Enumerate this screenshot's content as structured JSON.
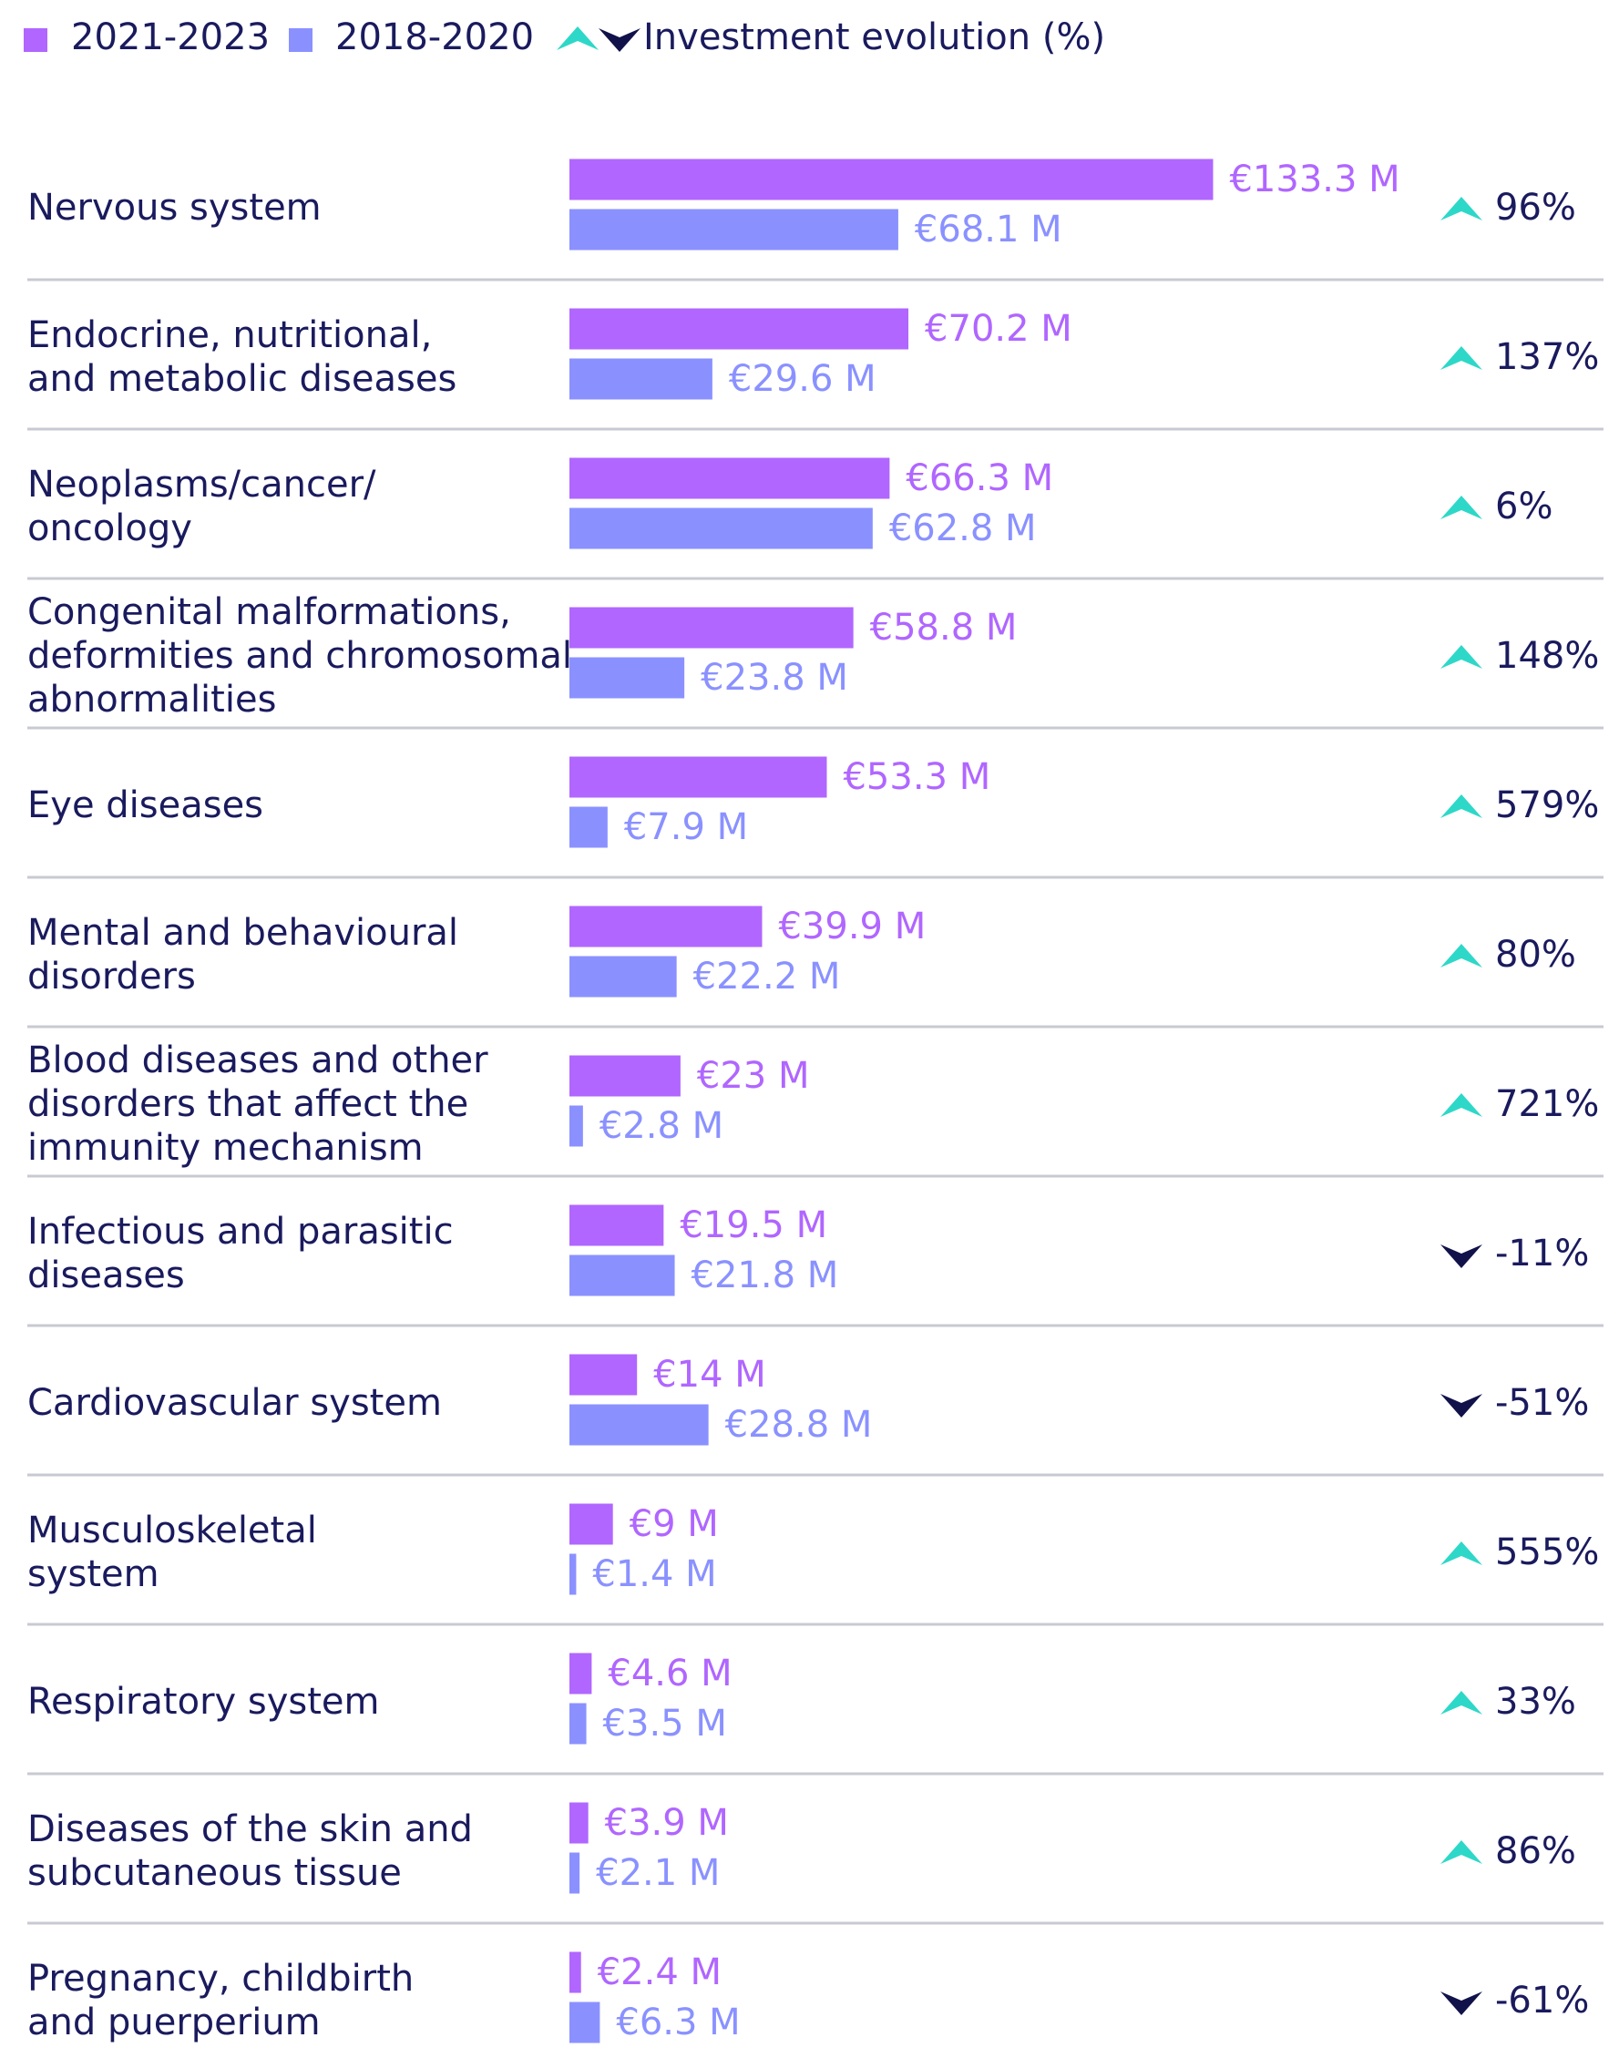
{
  "chart_data": {
    "type": "grouped-hbar",
    "legend_evolution": "Investment evolution (%)",
    "categories": [
      [
        "Nervous system"
      ],
      [
        "Endocrine, nutritional,",
        "and metabolic diseases"
      ],
      [
        "Neoplasms/cancer/",
        "oncology"
      ],
      [
        "Congenital malformations,",
        "deformities and chromosomal",
        "abnormalities"
      ],
      [
        "Eye diseases"
      ],
      [
        "Mental and behavioural",
        "disorders"
      ],
      [
        "Blood diseases and other",
        "disorders that affect the",
        "immunity mechanism"
      ],
      [
        "Infectious and parasitic",
        "diseases"
      ],
      [
        "Cardiovascular system"
      ],
      [
        "Musculoskeletal",
        "system"
      ],
      [
        "Respiratory system"
      ],
      [
        "Diseases of the skin and",
        "subcutaneous tissue"
      ],
      [
        "Pregnancy, childbirth",
        "and puerperium"
      ]
    ],
    "series": [
      {
        "name": "2021-2023",
        "color": "#b066ff",
        "values": [
          133.3,
          70.2,
          66.3,
          58.8,
          53.3,
          39.9,
          23,
          19.5,
          14,
          9,
          4.6,
          3.9,
          2.4
        ],
        "value_labels": [
          "€133.3 M",
          "€70.2 M",
          "€66.3 M",
          "€58.8 M",
          "€53.3 M",
          "€39.9 M",
          "€23 M",
          "€19.5 M",
          "€14 M",
          "€9 M",
          "€4.6 M",
          "€3.9 M",
          "€2.4 M"
        ]
      },
      {
        "name": "2018-2020",
        "color": "#8a91ff",
        "values": [
          68.1,
          29.6,
          62.8,
          23.8,
          7.9,
          22.2,
          2.8,
          21.8,
          28.8,
          1.4,
          3.5,
          2.1,
          6.3
        ],
        "value_labels": [
          "€68.1 M",
          "€29.6 M",
          "€62.8 M",
          "€23.8 M",
          "€7.9 M",
          "€22.2 M",
          "€2.8 M",
          "€21.8 M",
          "€28.8 M",
          "€1.4 M",
          "€3.5 M",
          "€2.1 M",
          "€6.3 M"
        ]
      }
    ],
    "evolution": {
      "values": [
        96,
        137,
        6,
        148,
        579,
        80,
        721,
        -11,
        -51,
        555,
        33,
        86,
        -61
      ],
      "value_labels": [
        "96%",
        "137%",
        "6%",
        "148%",
        "579%",
        "80%",
        "721%",
        "-11%",
        "-51%",
        "555%",
        "33%",
        "86%",
        "-61%"
      ],
      "up_color": "#2ed8c8",
      "down_color": "#12124a"
    }
  }
}
